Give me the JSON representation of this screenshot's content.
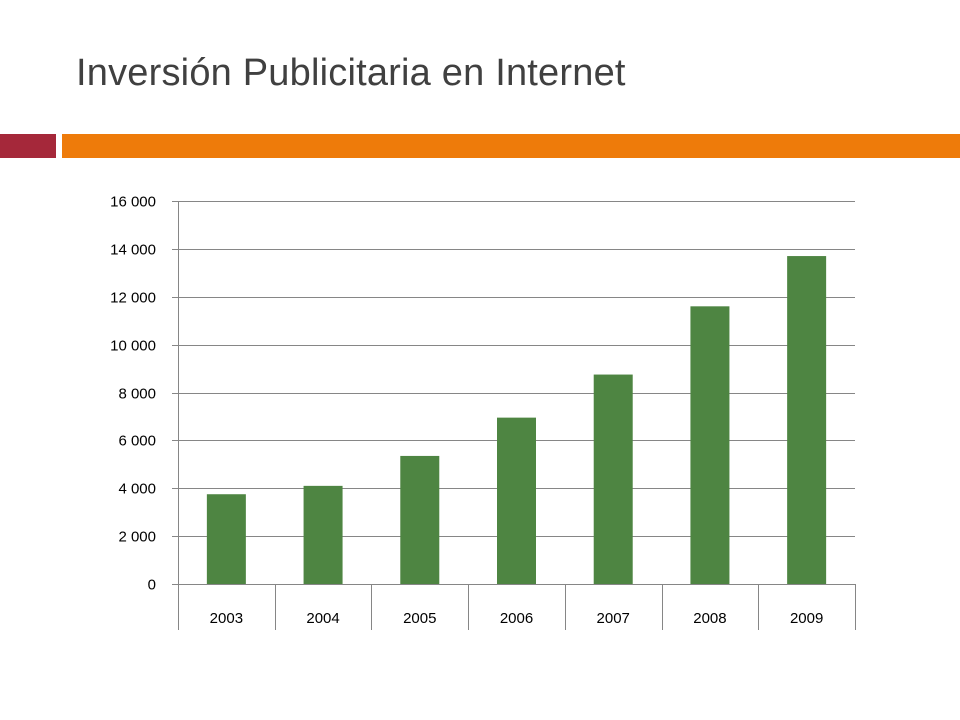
{
  "slide": {
    "title": "Inversión Publicitaria en Internet"
  },
  "colors": {
    "accent_red": "#A5283A",
    "accent_orange": "#EE7B0A",
    "bar": "#4E8542",
    "gridline": "#868686",
    "title_text": "#404040"
  },
  "chart_data": {
    "type": "bar",
    "title": "",
    "xlabel": "",
    "ylabel": "",
    "categories": [
      "2003",
      "2004",
      "2005",
      "2006",
      "2007",
      "2008",
      "2009"
    ],
    "values": [
      3750,
      4100,
      5350,
      6950,
      8750,
      11600,
      13700
    ],
    "ylim": [
      0,
      16000
    ],
    "yticks": [
      0,
      2000,
      4000,
      6000,
      8000,
      10000,
      12000,
      14000,
      16000
    ],
    "ytick_labels": [
      "0",
      "2 000",
      "4 000",
      "6 000",
      "8 000",
      "10 000",
      "12 000",
      "14 000",
      "16 000"
    ],
    "grid": true,
    "legend": "none"
  }
}
